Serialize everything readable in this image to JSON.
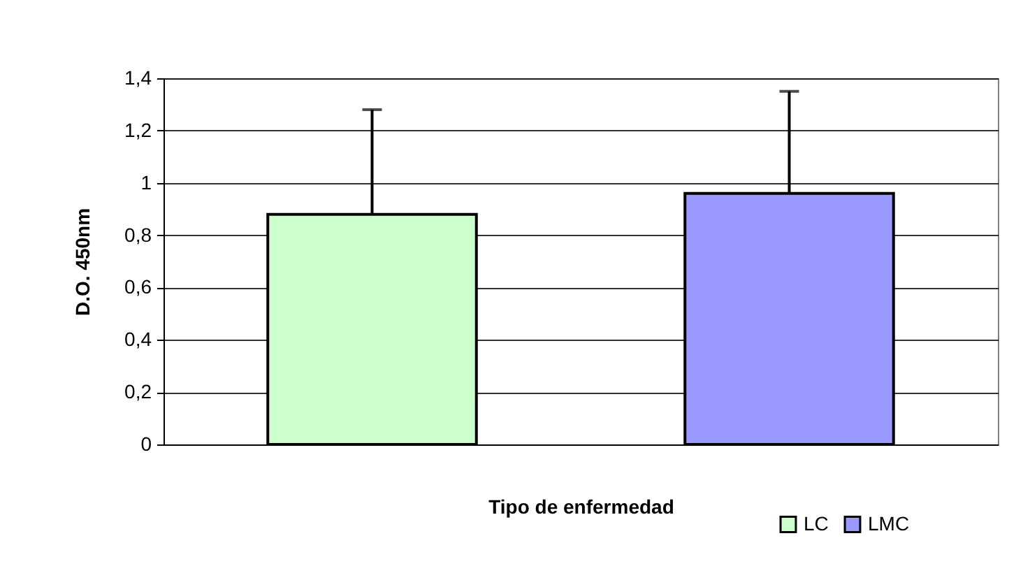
{
  "chart_data": {
    "type": "bar",
    "xlabel": "Tipo de enfermedad",
    "ylabel": "D.O. 450nm",
    "categories": [
      null,
      null
    ],
    "series": [
      {
        "name": "LC",
        "color": "#ccffcc",
        "values": [
          0.88,
          null
        ],
        "errors": [
          [
            0.88,
            1.28
          ],
          null
        ]
      },
      {
        "name": "LMC",
        "color": "#9999ff",
        "values": [
          null,
          0.96
        ],
        "errors": [
          null,
          [
            0.96,
            1.35
          ]
        ]
      }
    ],
    "ylim": [
      0,
      1.4
    ],
    "yticks": [
      {
        "value": 0,
        "label": "0"
      },
      {
        "value": 0.2,
        "label": "0,2"
      },
      {
        "value": 0.4,
        "label": "0,4"
      },
      {
        "value": 0.6,
        "label": "0,6"
      },
      {
        "value": 0.8,
        "label": "0,8"
      },
      {
        "value": 1,
        "label": "1"
      },
      {
        "value": 1.2,
        "label": "1,2"
      },
      {
        "value": 1.4,
        "label": "1,4"
      }
    ],
    "grid": "y",
    "legend": "bottom right"
  }
}
